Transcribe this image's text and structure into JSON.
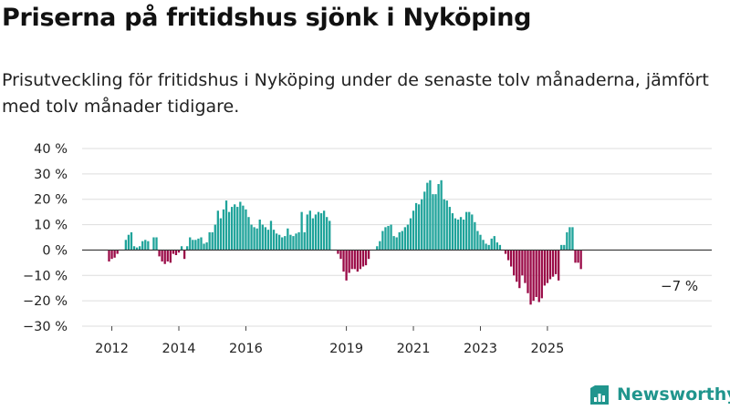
{
  "title": "Priserna på fritidshus sjönk i Nyköping",
  "subtitle": "Prisutveckling för fritidshus i Nyköping under de senaste tolv månaderna, jämfört med tolv månader tidigare.",
  "brand": {
    "name": "Newsworthy",
    "icon": "newsworthy-logo-icon"
  },
  "colors": {
    "positive": "#1fa39a",
    "negative": "#9a0a47",
    "zero_line": "#333333",
    "grid": "#dddddd",
    "brand": "#20958d"
  },
  "chart_data": {
    "type": "bar",
    "x_tick_labels": [
      "2012",
      "2014",
      "2016",
      "2019",
      "2021",
      "2023",
      "2025"
    ],
    "y_ticks": [
      40,
      30,
      20,
      10,
      0,
      -10,
      -20,
      -30
    ],
    "y_tick_labels": [
      "40 %",
      "30 %",
      "20 %",
      "10 %",
      "0 %",
      "−10 %",
      "−20 %",
      "−30 %"
    ],
    "ylim": [
      -30,
      40
    ],
    "ylabel": "",
    "xlabel": "",
    "grid": true,
    "annotation": "−7 %",
    "series": [
      {
        "segments": [
          {
            "start": "2011-12",
            "values": [
              -4.5,
              -3.5,
              -3,
              -1.5,
              0,
              0,
              4,
              6,
              7,
              1.5,
              1,
              1.5,
              3.5,
              4,
              3.5,
              0,
              5,
              5,
              -2.5,
              -4.5,
              -5.5,
              -4.5,
              -5,
              -1.5,
              -2,
              -1,
              1.5,
              -3.5,
              1.5,
              5,
              4,
              4,
              4.5,
              5,
              2.5,
              3,
              7,
              7,
              10,
              15.5,
              12.5,
              16,
              19.5,
              15,
              17,
              18,
              17,
              19,
              17.5,
              16,
              13,
              10,
              9,
              8.5,
              12,
              10,
              9,
              8,
              11.5,
              8,
              6.5,
              6,
              5,
              5.5,
              8.5,
              6,
              5.5,
              6.5,
              7,
              15,
              7,
              14,
              15.5,
              12.5,
              14,
              15,
              14.5,
              15.5,
              13,
              11.5
            ]
          },
          {
            "start": "2018-10",
            "values": [
              -1.5,
              -3.5,
              -8.5,
              -12,
              -9,
              -7.5,
              -7.5,
              -8.5,
              -7.5,
              -6.5,
              -6,
              -3.5,
              0,
              0,
              1.5,
              3.5,
              7.5,
              9,
              9.5,
              10,
              5.5,
              5,
              7,
              7.5,
              9,
              10,
              12.5,
              15.5,
              18.5,
              18,
              20,
              23,
              26.5,
              27.5,
              22,
              22,
              26,
              27.5,
              20,
              19.5,
              17,
              14.5,
              12.5,
              12,
              13,
              12,
              15,
              15,
              14,
              11,
              7.5,
              6,
              4,
              2.5,
              2,
              4.5,
              5.5,
              3,
              2,
              0,
              -1.5,
              -4,
              -6.5,
              -10,
              -12.5,
              -15,
              -10,
              -13,
              -17,
              -21.5,
              -20,
              -18.5,
              -20.5,
              -19,
              -14,
              -13,
              -11.5,
              -10.5,
              -9.5,
              -12,
              2,
              2,
              7,
              9,
              9,
              -5,
              -5,
              -7.5
            ]
          }
        ]
      }
    ]
  }
}
